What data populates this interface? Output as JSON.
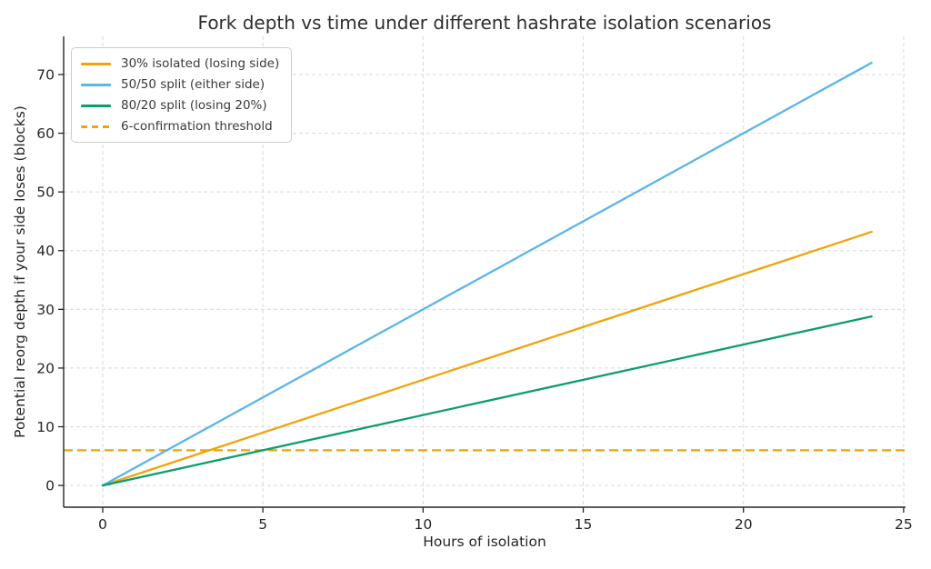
{
  "chart_data": {
    "type": "line",
    "title": "Fork depth vs time under different hashrate isolation scenarios",
    "xlabel": "Hours of isolation",
    "ylabel": "Potential reorg depth if your side loses (blocks)",
    "xlim": [
      -1.22,
      25.06
    ],
    "ylim": [
      -3.7,
      76.5
    ],
    "xticks": [
      0,
      5,
      10,
      15,
      20,
      25
    ],
    "yticks": [
      0,
      10,
      20,
      30,
      40,
      50,
      60,
      70
    ],
    "grid": true,
    "grid_color": "#d9d9d9",
    "axis_color": "#262626",
    "legend_position": "upper left",
    "series": [
      {
        "name": "30% isolated (losing side)",
        "color": "#F0A30A",
        "linestyle": "solid",
        "points": [
          [
            0,
            0
          ],
          [
            24,
            43.2
          ]
        ]
      },
      {
        "name": "50/50 split (either side)",
        "color": "#5BB5E7",
        "linestyle": "solid",
        "points": [
          [
            0,
            0
          ],
          [
            24,
            72
          ]
        ]
      },
      {
        "name": "80/20 split (losing 20%)",
        "color": "#0D9D6B",
        "linestyle": "solid",
        "points": [
          [
            0,
            0
          ],
          [
            24,
            28.8
          ]
        ]
      }
    ],
    "threshold": {
      "name": "6-confirmation threshold",
      "color": "#F0A30A",
      "linestyle": "dashed",
      "y": 6
    }
  }
}
